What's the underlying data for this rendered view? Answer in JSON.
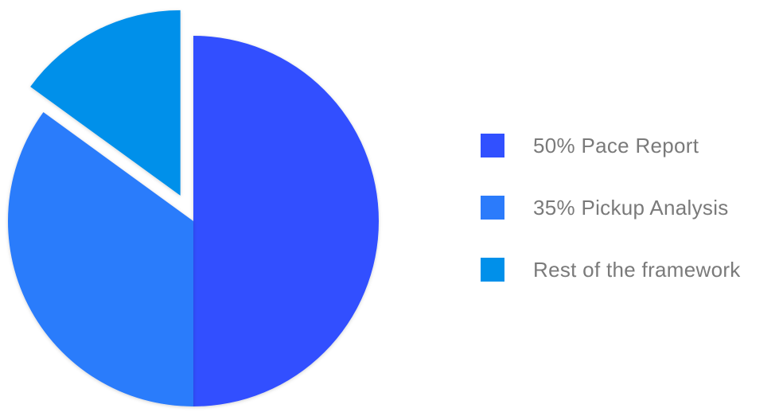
{
  "chart_data": {
    "type": "pie",
    "slices": [
      {
        "label": "50% Pace Report",
        "value": 50,
        "color": "#3150FF",
        "exploded": false
      },
      {
        "label": "35% Pickup Analysis",
        "value": 35,
        "color": "#2B7BFB",
        "exploded": false
      },
      {
        "label": "Rest of the framework",
        "value": 15,
        "color": "#0090EA",
        "exploded": true
      }
    ],
    "legend_position": "right",
    "start_angle_deg": 0,
    "direction": "clockwise"
  }
}
